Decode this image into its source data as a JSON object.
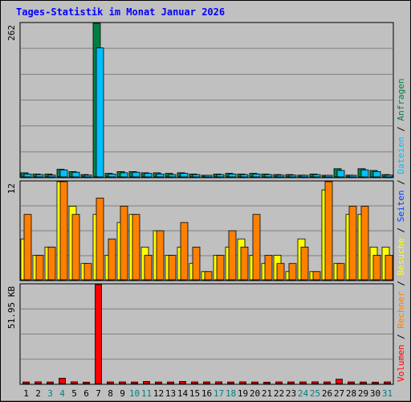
{
  "chart_data": {
    "type": "bar",
    "title": "Tages-Statistik im Monat Januar 2026",
    "categories": [
      "1",
      "2",
      "3",
      "4",
      "5",
      "6",
      "7",
      "8",
      "9",
      "10",
      "11",
      "12",
      "13",
      "14",
      "15",
      "16",
      "17",
      "18",
      "19",
      "20",
      "21",
      "22",
      "23",
      "24",
      "25",
      "26",
      "27",
      "28",
      "29",
      "30",
      "31"
    ],
    "weekend_days": [
      "3",
      "4",
      "10",
      "11",
      "17",
      "18",
      "24",
      "25",
      "31"
    ],
    "panels": [
      {
        "name": "hits_files",
        "ylim": [
          0,
          262
        ],
        "max_label": "262",
        "side_labels": [
          "Anfragen",
          "Dateien"
        ],
        "series": [
          {
            "name": "Anfragen",
            "color": "#008040",
            "values": [
              7,
              5,
              5,
              13,
              9,
              4,
              262,
              6,
              9,
              9,
              7,
              7,
              6,
              7,
              5,
              2,
              5,
              6,
              5,
              6,
              5,
              4,
              4,
              3,
              5,
              2,
              14,
              3,
              14,
              11,
              4
            ]
          },
          {
            "name": "Dateien",
            "color": "#00c0ff",
            "values": [
              5,
              4,
              3,
              12,
              8,
              3,
              220,
              5,
              7,
              8,
              6,
              5,
              4,
              6,
              4,
              1,
              4,
              5,
              4,
              5,
              4,
              3,
              3,
              2,
              4,
              1,
              11,
              2,
              12,
              9,
              3
            ]
          }
        ]
      },
      {
        "name": "pages_visits_sites",
        "ylim": [
          0,
          12
        ],
        "max_label": "12",
        "side_labels": [
          "Seiten",
          "Besuche",
          "Rechner"
        ],
        "series": [
          {
            "name": "Seiten",
            "color": "#0040ff",
            "values": [
              0,
              0,
              0,
              0,
              0,
              0,
              0,
              0,
              0,
              0,
              0,
              0,
              0,
              0,
              0,
              0,
              0,
              0,
              0,
              0,
              0,
              0,
              0,
              0,
              0,
              0,
              0,
              0,
              0,
              0,
              0
            ]
          },
          {
            "name": "Besuche",
            "color": "#ffff00",
            "values": [
              5,
              3,
              4,
              12,
              9,
              2,
              8,
              3,
              7,
              8,
              4,
              6,
              3,
              4,
              2,
              1,
              3,
              4,
              5,
              3,
              2,
              3,
              1,
              5,
              1,
              11,
              2,
              8,
              8,
              4,
              4
            ]
          },
          {
            "name": "Rechner",
            "color": "#ff8000",
            "values": [
              8,
              3,
              4,
              12,
              8,
              2,
              10,
              5,
              9,
              8,
              3,
              6,
              3,
              7,
              4,
              1,
              3,
              6,
              4,
              8,
              3,
              2,
              2,
              4,
              1,
              12,
              2,
              9,
              9,
              3,
              3
            ]
          }
        ]
      },
      {
        "name": "volume",
        "ylim": [
          0,
          51.95
        ],
        "max_label": "51.95 KB",
        "side_labels": [
          "Volumen"
        ],
        "series": [
          {
            "name": "Volumen",
            "color": "#ff0000",
            "values": [
              0.8,
              0.9,
              0.8,
              2.8,
              0.9,
              0.7,
              51.95,
              0.6,
              0.6,
              0.8,
              1.1,
              0.8,
              0.8,
              1.1,
              0.6,
              0.3,
              0.9,
              0.8,
              0.9,
              0.8,
              0.7,
              0.6,
              0.6,
              0.3,
              0.9,
              0.5,
              2.3,
              0.4,
              0.8,
              0.7,
              0.5
            ]
          }
        ]
      }
    ],
    "grid": true,
    "legend": "right-vertical"
  }
}
